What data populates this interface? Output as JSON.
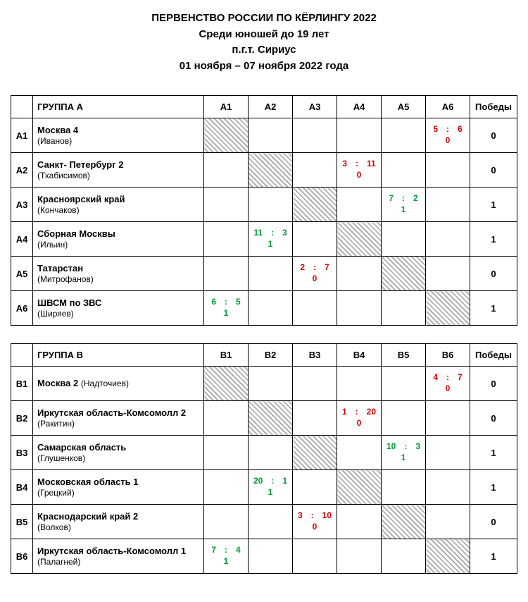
{
  "header": {
    "line1": "ПЕРВЕНСТВО РОССИИ ПО КЁРЛИНГУ 2022",
    "line2": "Среди юношей до 19 лет",
    "line3": "п.г.т. Сириус",
    "line4": "01 ноября – 07 ноября 2022 года"
  },
  "wins_label": "Победы",
  "groups": [
    {
      "name": "ГРУППА A",
      "prefix": "A",
      "teams": [
        {
          "code": "A1",
          "name": "Москва 4",
          "sub": "(Иванов)",
          "wins": 0,
          "scores": [
            null,
            null,
            null,
            null,
            null,
            {
              "a": 5,
              "b": 6,
              "r": 0,
              "w": false
            }
          ]
        },
        {
          "code": "A2",
          "name": "Санкт- Петербург 2",
          "sub": "(Тхабисимов)",
          "wins": 0,
          "scores": [
            null,
            null,
            null,
            {
              "a": 3,
              "b": 11,
              "r": 0,
              "w": false
            },
            null,
            null
          ]
        },
        {
          "code": "A3",
          "name": "Красноярский край",
          "sub": "(Кончаков)",
          "wins": 1,
          "scores": [
            null,
            null,
            null,
            null,
            {
              "a": 7,
              "b": 2,
              "r": 1,
              "w": true
            },
            null
          ]
        },
        {
          "code": "A4",
          "name": "Сборная Москвы",
          "sub": "(Ильин)",
          "wins": 1,
          "scores": [
            null,
            {
              "a": 11,
              "b": 3,
              "r": 1,
              "w": true
            },
            null,
            null,
            null,
            null
          ]
        },
        {
          "code": "A5",
          "name": "Татарстан",
          "sub": "(Митрофанов)",
          "wins": 0,
          "scores": [
            null,
            null,
            {
              "a": 2,
              "b": 7,
              "r": 0,
              "w": false
            },
            null,
            null,
            null
          ]
        },
        {
          "code": "A6",
          "name": "ШВСМ по ЗВС",
          "sub": "(Ширяев)",
          "wins": 1,
          "scores": [
            {
              "a": 6,
              "b": 5,
              "r": 1,
              "w": true
            },
            null,
            null,
            null,
            null,
            null
          ]
        }
      ]
    },
    {
      "name": "ГРУППА B",
      "prefix": "B",
      "teams": [
        {
          "code": "B1",
          "name": "Москва 2",
          "sub": "(Надточиев)",
          "inline": true,
          "wins": 0,
          "scores": [
            null,
            null,
            null,
            null,
            null,
            {
              "a": 4,
              "b": 7,
              "r": 0,
              "w": false
            }
          ]
        },
        {
          "code": "B2",
          "name": "Иркутская область-Комсомолл 2",
          "sub": "(Ракитин)",
          "wins": 0,
          "scores": [
            null,
            null,
            null,
            {
              "a": 1,
              "b": 20,
              "r": 0,
              "w": false
            },
            null,
            null
          ]
        },
        {
          "code": "B3",
          "name": "Самарская область",
          "sub": "(Глушенков)",
          "wins": 1,
          "scores": [
            null,
            null,
            null,
            null,
            {
              "a": 10,
              "b": 3,
              "r": 1,
              "w": true
            },
            null
          ]
        },
        {
          "code": "B4",
          "name": "Московская область 1",
          "sub": "(Грецкий)",
          "wins": 1,
          "scores": [
            null,
            {
              "a": 20,
              "b": 1,
              "r": 1,
              "w": true
            },
            null,
            null,
            null,
            null
          ]
        },
        {
          "code": "B5",
          "name": "Краснодарский край 2",
          "sub": "(Волков)",
          "wins": 0,
          "scores": [
            null,
            null,
            {
              "a": 3,
              "b": 10,
              "r": 0,
              "w": false
            },
            null,
            null,
            null
          ]
        },
        {
          "code": "B6",
          "name": "Иркутская область-Комсомолл 1",
          "sub": "(Палагней)",
          "wins": 1,
          "scores": [
            {
              "a": 7,
              "b": 4,
              "r": 1,
              "w": true
            },
            null,
            null,
            null,
            null,
            null
          ]
        }
      ]
    }
  ]
}
